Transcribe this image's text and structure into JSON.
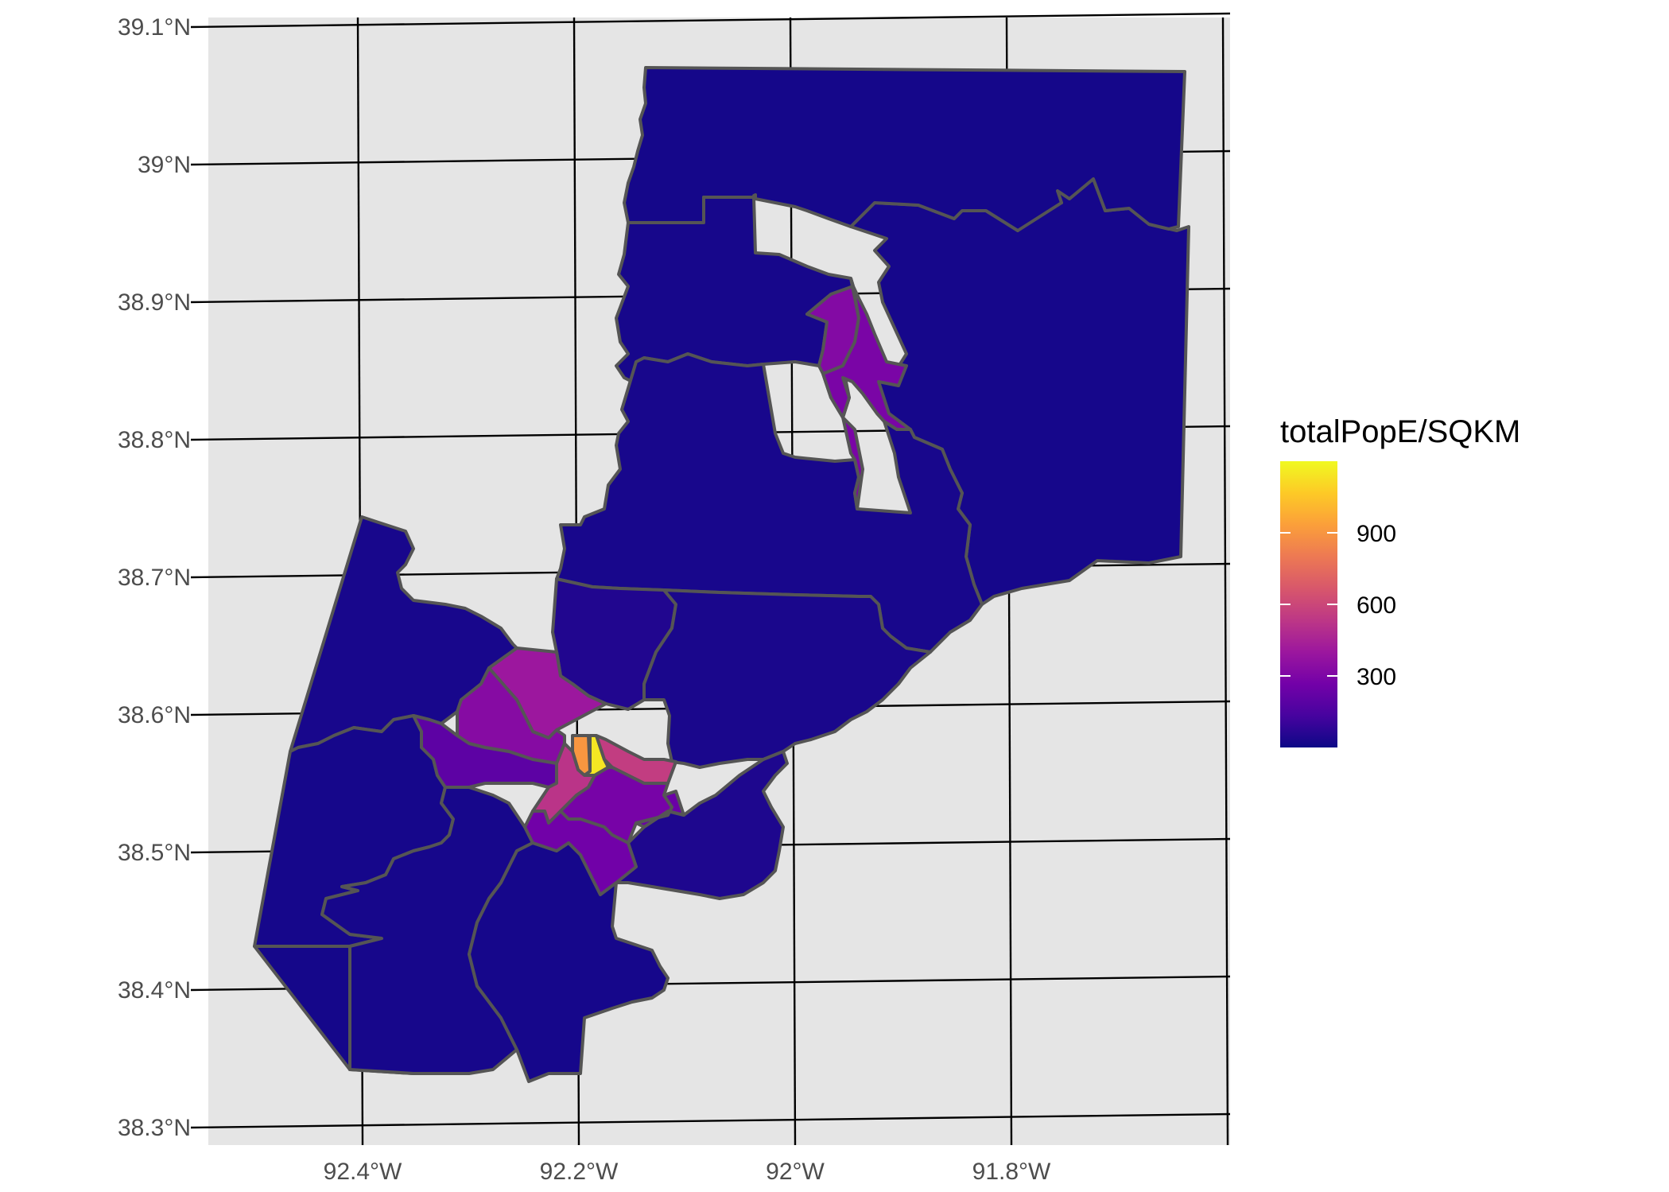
{
  "map": {
    "axes": {
      "lat_ticks": [
        {
          "value": 39.1,
          "label": "39.1°N"
        },
        {
          "value": 39.0,
          "label": "39°N"
        },
        {
          "value": 38.9,
          "label": "38.9°N"
        },
        {
          "value": 38.8,
          "label": "38.8°N"
        },
        {
          "value": 38.7,
          "label": "38.7°N"
        },
        {
          "value": 38.6,
          "label": "38.6°N"
        },
        {
          "value": 38.5,
          "label": "38.5°N"
        },
        {
          "value": 38.4,
          "label": "38.4°N"
        },
        {
          "value": 38.3,
          "label": "38.3°N"
        }
      ],
      "lon_ticks": [
        {
          "value": -92.4,
          "label": "92.4°W"
        },
        {
          "value": -92.2,
          "label": "92.2°W"
        },
        {
          "value": -92.0,
          "label": "92°W"
        },
        {
          "value": -91.8,
          "label": "91.8°W"
        }
      ]
    },
    "legend": {
      "title": "totalPopE/SQKM",
      "placement": "right",
      "breaks": [
        {
          "value": 900,
          "label": "900"
        },
        {
          "value": 600,
          "label": "600"
        },
        {
          "value": 300,
          "label": "300"
        }
      ],
      "range": [
        0,
        1200
      ],
      "palette": [
        "#0d0887",
        "#47039f",
        "#7301a8",
        "#9c179e",
        "#bd3786",
        "#d8576b",
        "#ed7953",
        "#fb9f3a",
        "#fdca26",
        "#f0f921"
      ]
    },
    "colors": {
      "panel_background": "#e5e5e5",
      "graticule": "#000000",
      "boundary": "#555555"
    }
  }
}
